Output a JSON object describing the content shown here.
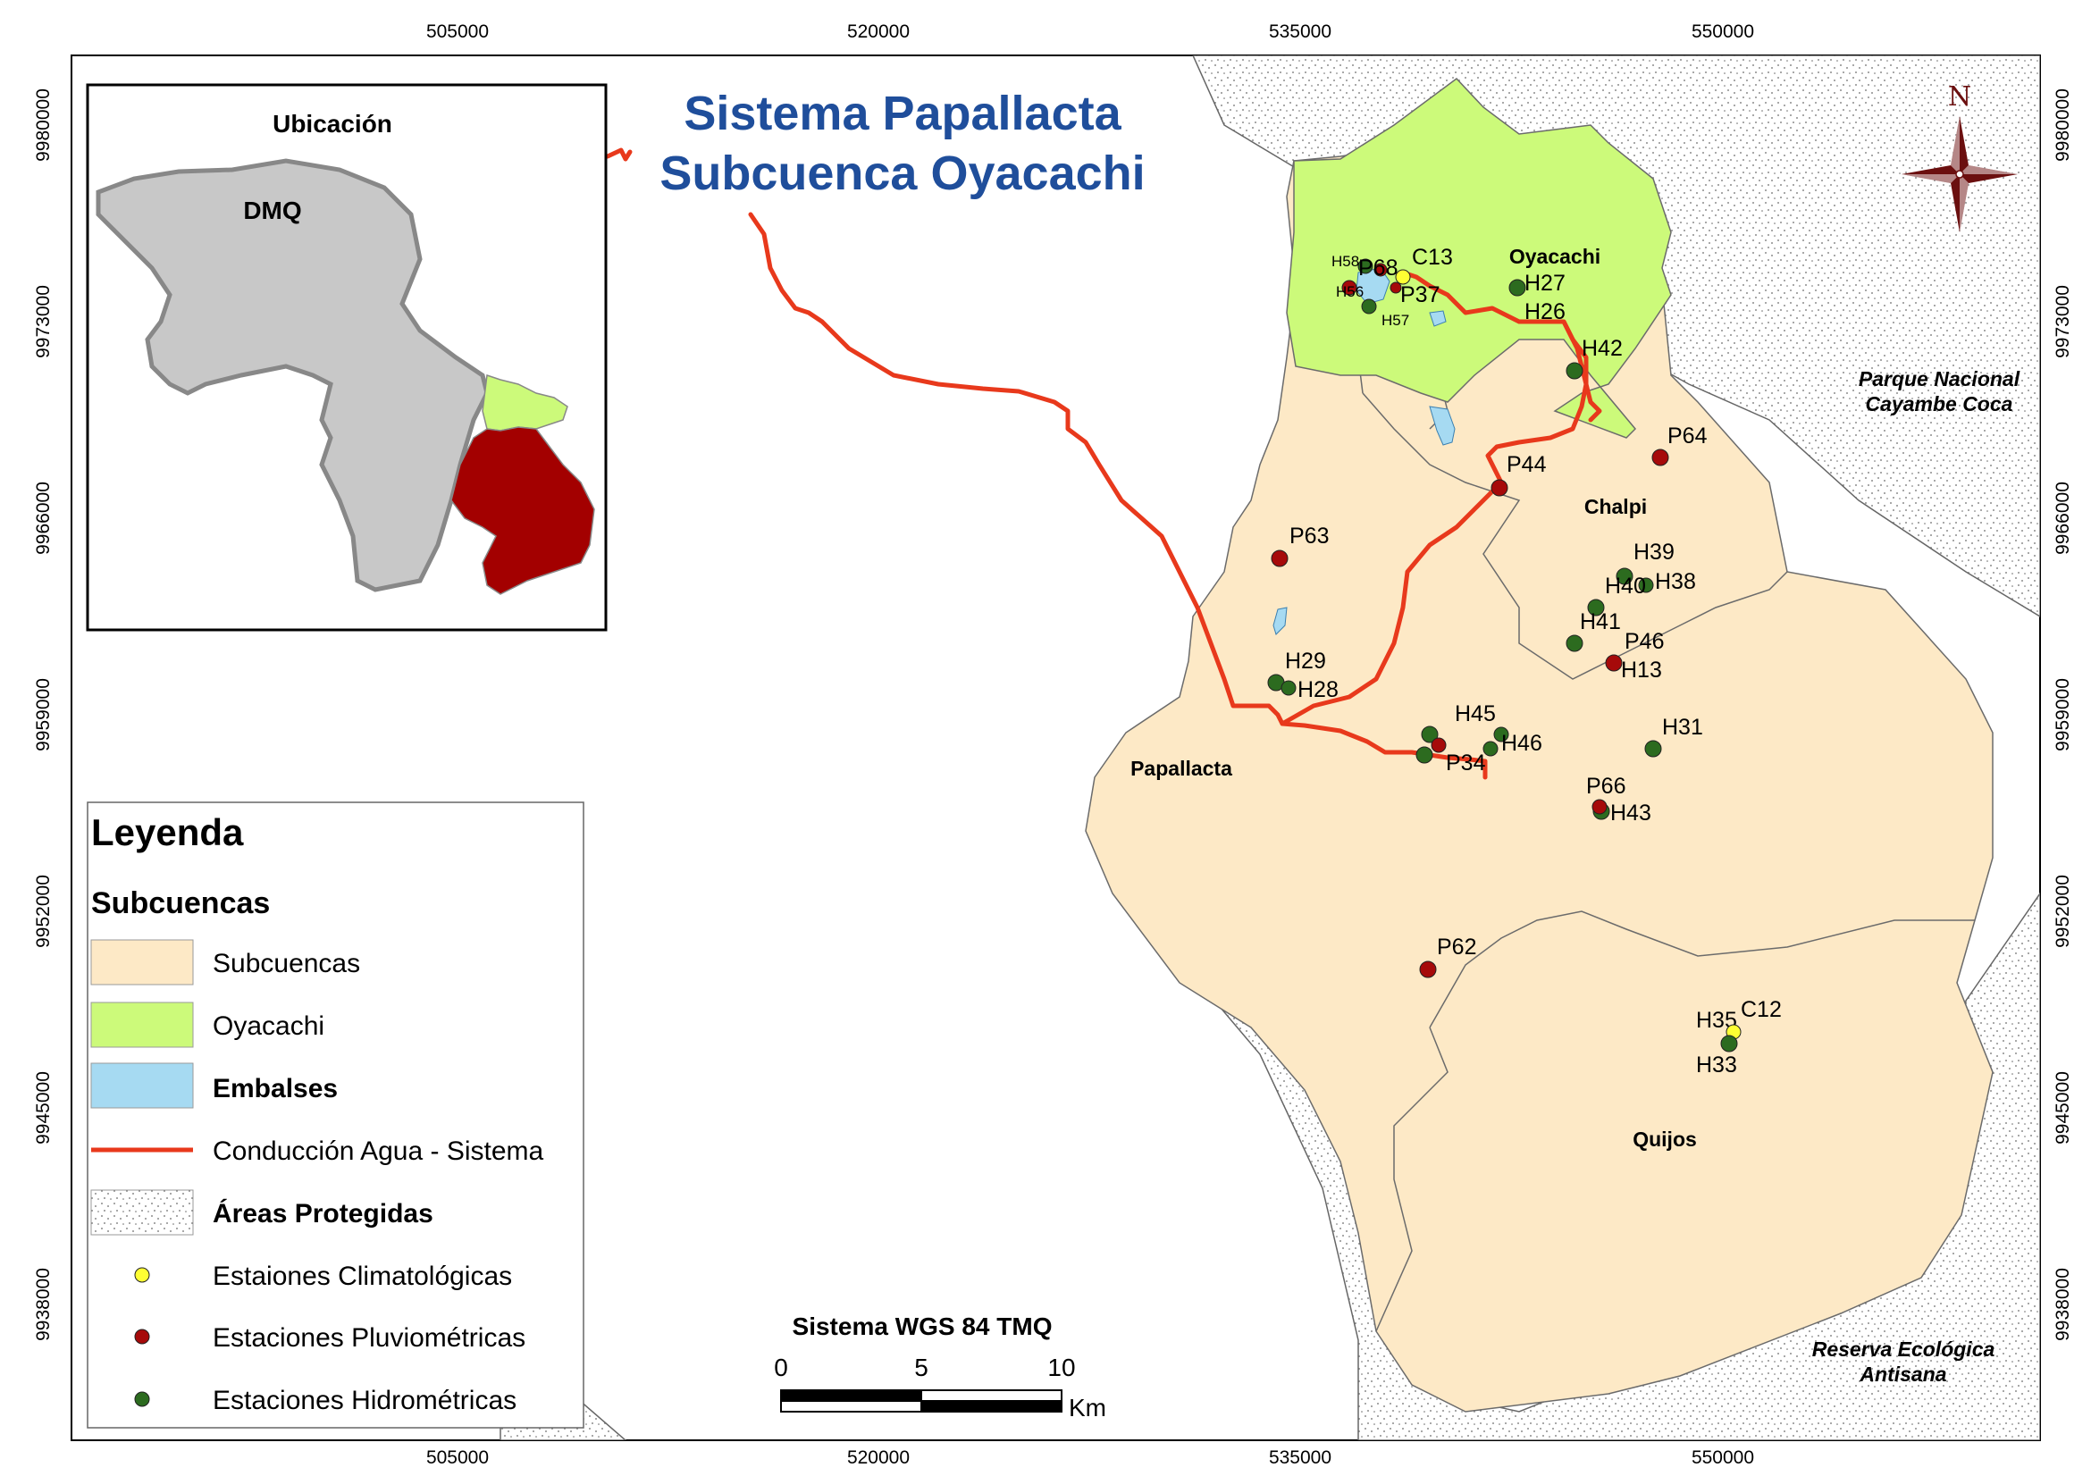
{
  "title": {
    "line1": "Sistema Papallacta",
    "line2": "Subcuenca Oyacachi"
  },
  "axes": {
    "x_ticks": [
      "505000",
      "520000",
      "535000",
      "550000"
    ],
    "y_ticks": [
      "9980000",
      "9973000",
      "9966000",
      "9959000",
      "9952000",
      "9945000",
      "9938000"
    ]
  },
  "inset": {
    "title": "Ubicación",
    "label": "DMQ"
  },
  "subbasins": {
    "oyacachi": "Oyacachi",
    "chalpi": "Chalpi",
    "papallacta": "Papallacta",
    "quijos": "Quijos"
  },
  "protected_areas": {
    "cayambe_line1": "Parque Nacional",
    "cayambe_line2": "Cayambe Coca",
    "antisana_line1": "Reserva Ecológica",
    "antisana_line2": "Antisana"
  },
  "stations": {
    "climatological": [
      "C13",
      "C12"
    ],
    "pluviometric": [
      "P68",
      "P37",
      "P64",
      "P44",
      "P63",
      "P46",
      "P34",
      "P66",
      "P62"
    ],
    "hydrometric": [
      "H58",
      "H56",
      "H57",
      "H27",
      "H26",
      "H42",
      "H39",
      "H40",
      "H38",
      "H41",
      "H13",
      "H29",
      "H28",
      "H45",
      "H46",
      "H31",
      "H43",
      "H35",
      "H33"
    ]
  },
  "legend": {
    "title": "Leyenda",
    "section": "Subcuencas",
    "items": [
      "Subcuencas",
      "Oyacachi",
      "Embalses",
      "Conducción Agua - Sistema",
      "Áreas Protegidas",
      "Estaiones Climatológicas",
      "Estaciones Pluviométricas",
      "Estaciones Hidrométricas"
    ]
  },
  "scale": {
    "system": "Sistema WGS 84 TMQ",
    "labels": [
      "0",
      "5",
      "10"
    ],
    "unit": "Km"
  },
  "north_label": "N",
  "colors": {
    "subbasin_fill": "#fde9c6",
    "oyacachi_fill": "#ccfa7a",
    "reservoir_fill": "#a6daf2",
    "conduction_line": "#e8391c",
    "pluviometric": "#a60a0a",
    "hydrometric": "#2c6b1f",
    "climatological": "#ffff33",
    "title_blue": "#1f4e9b",
    "dmq_fill": "#c8c8c8",
    "inset_red": "#a30000"
  }
}
